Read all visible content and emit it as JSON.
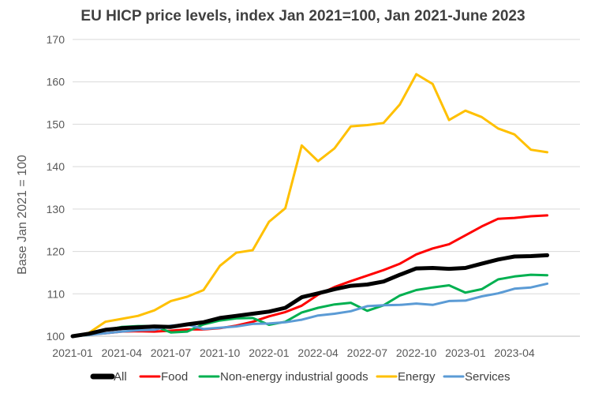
{
  "chart_data": {
    "type": "line",
    "title": "EU HICP price levels, index Jan 2021=100, Jan 2021-June 2023",
    "xlabel": "",
    "ylabel": "Base Jan 2021 = 100",
    "ylim": [
      100,
      170
    ],
    "yticks": [
      100,
      110,
      120,
      130,
      140,
      150,
      160,
      170
    ],
    "grid": true,
    "legend_position": "bottom",
    "x": [
      "2021-01",
      "2021-02",
      "2021-03",
      "2021-04",
      "2021-05",
      "2021-06",
      "2021-07",
      "2021-08",
      "2021-09",
      "2021-10",
      "2021-11",
      "2021-12",
      "2022-01",
      "2022-02",
      "2022-03",
      "2022-04",
      "2022-05",
      "2022-06",
      "2022-07",
      "2022-08",
      "2022-09",
      "2022-10",
      "2022-11",
      "2022-12",
      "2023-01",
      "2023-02",
      "2023-03",
      "2023-04",
      "2023-05",
      "2023-06"
    ],
    "xtick_labels": [
      "2021-01",
      "2021-04",
      "2021-07",
      "2021-10",
      "2022-01",
      "2022-04",
      "2022-07",
      "2022-10",
      "2023-01",
      "2023-04"
    ],
    "series": [
      {
        "name": "All",
        "color": "#000000",
        "width": 5,
        "values": [
          100.0,
          100.6,
          101.5,
          101.9,
          102.1,
          102.3,
          102.2,
          102.8,
          103.3,
          104.3,
          104.8,
          105.3,
          105.8,
          106.7,
          109.2,
          110.1,
          111.1,
          111.9,
          112.2,
          112.9,
          114.5,
          116.0,
          116.1,
          115.9,
          116.1,
          117.1,
          118.1,
          118.8,
          118.9,
          119.1
        ]
      },
      {
        "name": "Food",
        "color": "#ff0000",
        "width": 3,
        "values": [
          100.0,
          100.4,
          100.7,
          101.1,
          101.2,
          101.1,
          101.3,
          101.6,
          101.6,
          101.9,
          102.5,
          103.4,
          104.7,
          105.7,
          107.2,
          109.8,
          111.6,
          113.0,
          114.3,
          115.6,
          117.1,
          119.3,
          120.7,
          121.7,
          123.8,
          125.9,
          127.7,
          127.9,
          128.3,
          128.5
        ]
      },
      {
        "name": "Non-energy industrial goods",
        "color": "#00b050",
        "width": 3,
        "values": [
          100.0,
          100.3,
          101.4,
          102.2,
          102.4,
          102.4,
          100.9,
          101.1,
          102.8,
          103.7,
          104.2,
          104.3,
          102.7,
          103.4,
          105.6,
          106.7,
          107.5,
          107.9,
          106.0,
          107.3,
          109.6,
          110.9,
          111.5,
          112.0,
          110.3,
          111.1,
          113.4,
          114.1,
          114.5,
          114.4
        ]
      },
      {
        "name": "Energy",
        "color": "#ffc000",
        "width": 3,
        "values": [
          100.0,
          100.8,
          103.4,
          104.1,
          104.8,
          106.1,
          108.3,
          109.3,
          110.9,
          116.6,
          119.7,
          120.3,
          127.0,
          130.2,
          145.0,
          141.3,
          144.3,
          149.5,
          149.8,
          150.3,
          154.7,
          161.8,
          159.5,
          151.0,
          153.2,
          151.7,
          149.0,
          147.6,
          144.0,
          143.4
        ]
      },
      {
        "name": "Services",
        "color": "#5b9bd5",
        "width": 3,
        "values": [
          100.0,
          100.3,
          100.7,
          101.1,
          101.4,
          101.5,
          102.5,
          102.8,
          101.7,
          102.0,
          102.3,
          102.9,
          103.0,
          103.3,
          103.9,
          104.9,
          105.3,
          105.9,
          107.1,
          107.3,
          107.4,
          107.7,
          107.4,
          108.3,
          108.4,
          109.4,
          110.1,
          111.2,
          111.5,
          112.4
        ]
      }
    ]
  }
}
